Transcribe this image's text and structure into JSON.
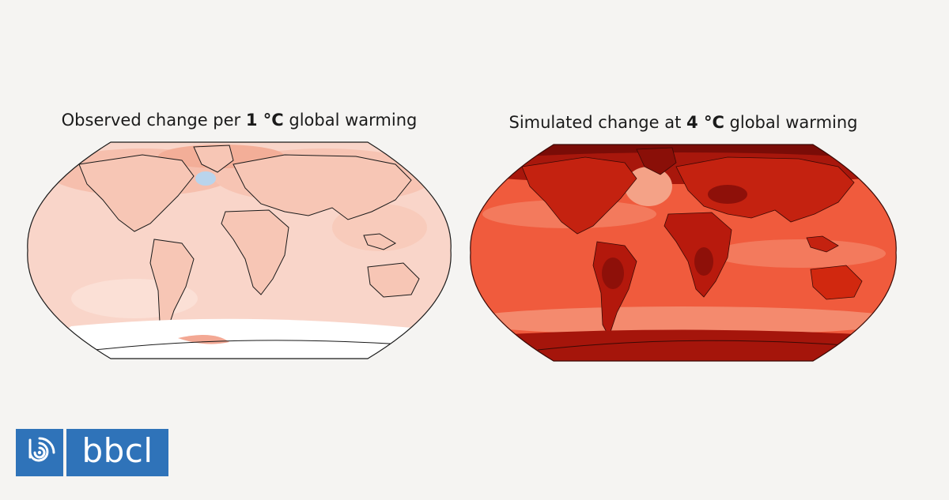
{
  "maps": [
    {
      "title_prefix": "Observed change per ",
      "title_bold": "1 °C",
      "title_suffix": " global warming",
      "base_color": "#f9d3c7",
      "land_color": "#f6c2b2",
      "accent_color": "#f0a08a",
      "cool_spot_color": "#b9d4ec",
      "no_data_color": "#ffffff"
    },
    {
      "title_prefix": "Simulated change at ",
      "title_bold": "4 °C",
      "title_suffix": " global warming",
      "base_color": "#f05a3c",
      "land_color": "#c4200f",
      "accent_color": "#a0130a",
      "polar_color": "#6e0a06",
      "band_color": "#f48a6e"
    }
  ],
  "logo": {
    "icon": "bbcl-radio-icon",
    "text": "bbcl",
    "color": "#2f73b9"
  }
}
